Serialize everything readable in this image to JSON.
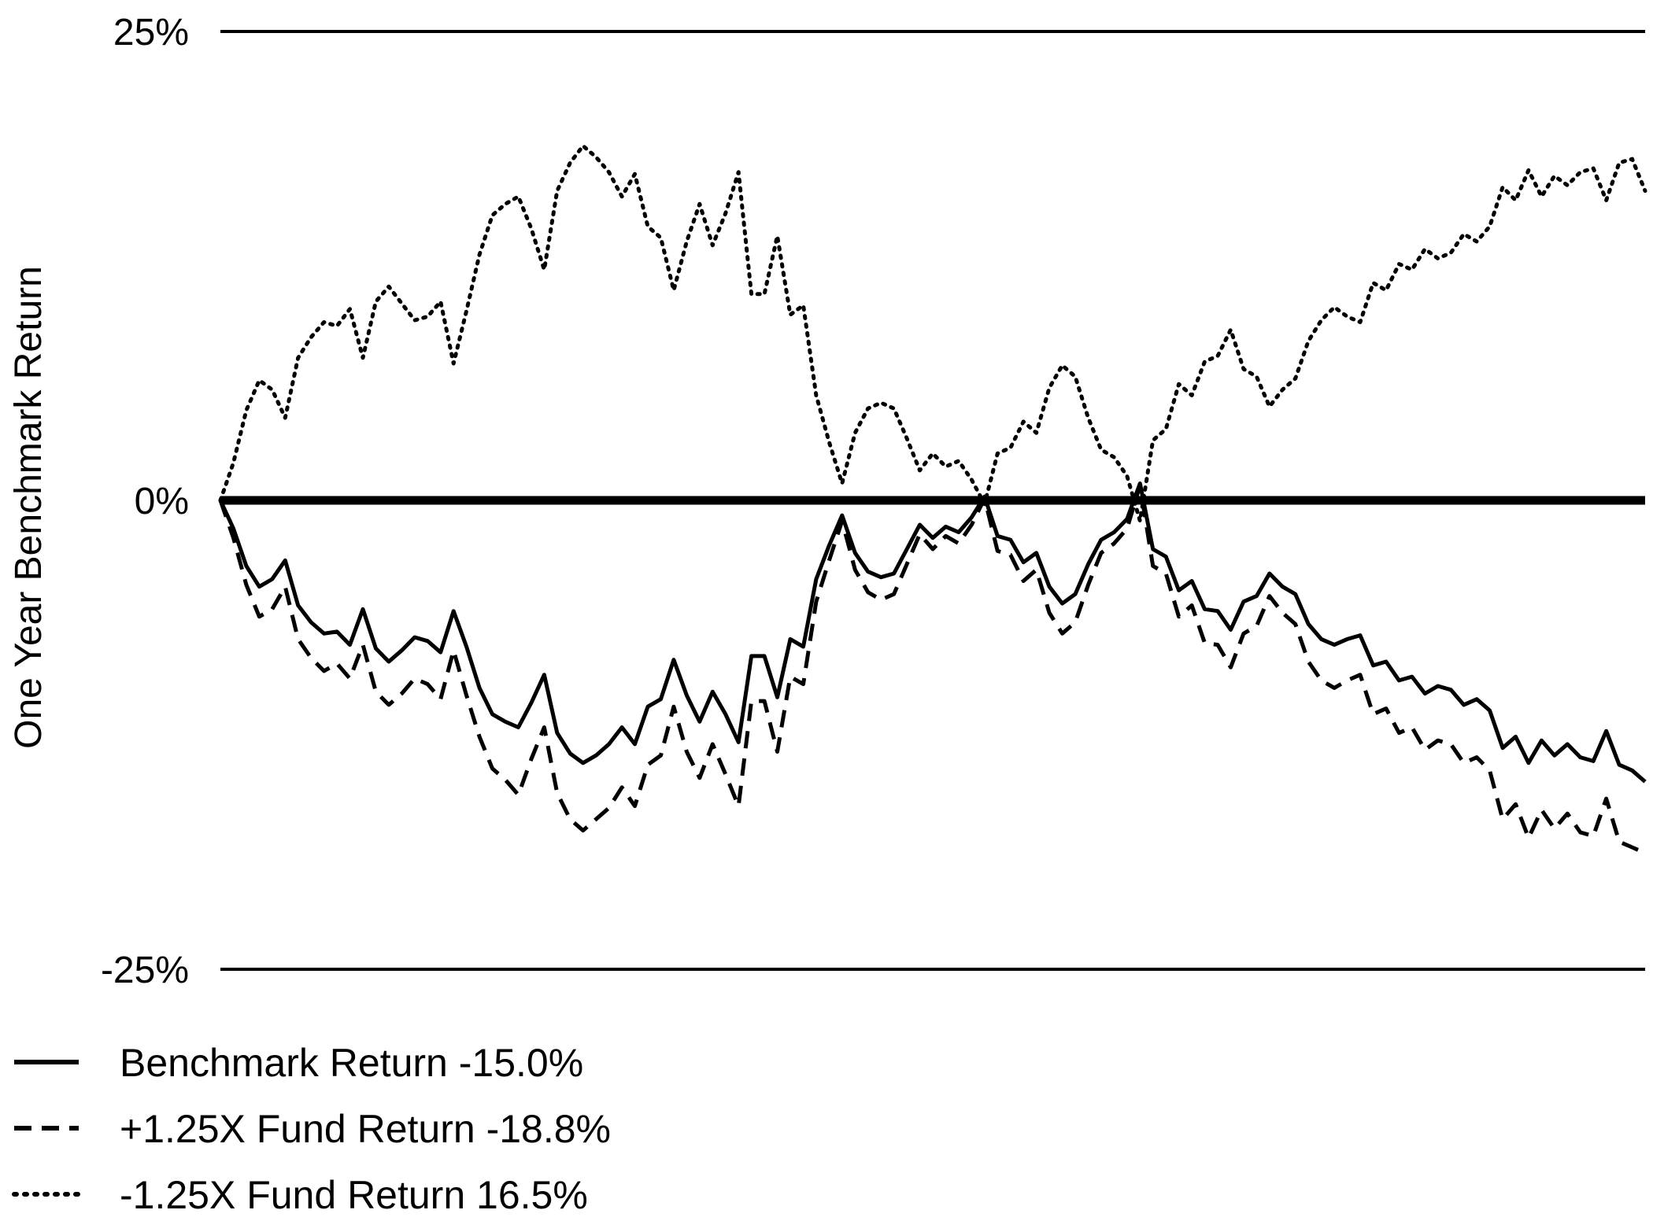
{
  "chart_data": {
    "type": "line",
    "ylabel": "One Year Benchmark Return",
    "xlabel": "",
    "ylim": [
      -25,
      25
    ],
    "y_ticks": [
      {
        "value": 25,
        "label": "25%"
      },
      {
        "value": 0,
        "label": "0%"
      },
      {
        "value": -25,
        "label": "-25%"
      }
    ],
    "grid": "horizontal lines at 25% and -25%, heavy zero line",
    "legend_position": "bottom-left",
    "series": [
      {
        "name": "Benchmark Return -15.0%",
        "style": "solid",
        "color": "#000000",
        "values": [
          0,
          -1.5,
          -3.5,
          -4.6,
          -4.2,
          -3.2,
          -5.6,
          -6.5,
          -7.1,
          -7.0,
          -7.7,
          -5.8,
          -7.9,
          -8.6,
          -8.0,
          -7.3,
          -7.5,
          -8.1,
          -5.9,
          -7.8,
          -10.0,
          -11.4,
          -11.8,
          -12.1,
          -10.8,
          -9.3,
          -12.4,
          -13.5,
          -14.0,
          -13.6,
          -13.0,
          -12.1,
          -13.0,
          -11.0,
          -10.6,
          -8.5,
          -10.4,
          -11.8,
          -10.2,
          -11.4,
          -12.9,
          -8.3,
          -8.3,
          -10.5,
          -7.4,
          -7.8,
          -4.2,
          -2.4,
          -0.8,
          -2.8,
          -3.8,
          -4.1,
          -3.9,
          -2.6,
          -1.3,
          -2.0,
          -1.4,
          -1.7,
          -0.9,
          0.2,
          -1.9,
          -2.1,
          -3.3,
          -2.8,
          -4.6,
          -5.5,
          -5.0,
          -3.4,
          -2.1,
          -1.7,
          -1.0,
          0.9,
          -2.6,
          -3.0,
          -4.8,
          -4.3,
          -5.8,
          -5.9,
          -6.9,
          -5.4,
          -5.1,
          -3.9,
          -4.6,
          -5.0,
          -6.6,
          -7.4,
          -7.7,
          -7.4,
          -7.2,
          -8.8,
          -8.6,
          -9.6,
          -9.4,
          -10.3,
          -9.9,
          -10.1,
          -10.9,
          -10.6,
          -11.2,
          -13.2,
          -12.6,
          -14.0,
          -12.8,
          -13.6,
          -13.0,
          -13.7,
          -13.9,
          -12.3,
          -14.1,
          -14.4,
          -15.0
        ]
      },
      {
        "name": "+1.25X Fund Return -18.8%",
        "style": "dashed",
        "color": "#000000",
        "values": [
          0,
          -2.0,
          -4.5,
          -6.2,
          -5.8,
          -4.6,
          -7.4,
          -8.4,
          -9.1,
          -8.7,
          -9.5,
          -7.7,
          -10.2,
          -10.9,
          -10.3,
          -9.5,
          -9.8,
          -10.6,
          -8.0,
          -10.4,
          -12.6,
          -14.3,
          -14.9,
          -15.7,
          -13.8,
          -12.1,
          -15.6,
          -17.0,
          -17.6,
          -17.0,
          -16.4,
          -15.3,
          -16.3,
          -14.1,
          -13.6,
          -11.0,
          -13.4,
          -14.8,
          -13.0,
          -14.6,
          -16.3,
          -10.7,
          -10.7,
          -13.4,
          -9.4,
          -9.8,
          -5.4,
          -3.2,
          -1.1,
          -3.7,
          -4.9,
          -5.3,
          -5.0,
          -3.4,
          -1.8,
          -2.6,
          -1.9,
          -2.3,
          -1.3,
          0.1,
          -2.7,
          -2.9,
          -4.3,
          -3.7,
          -6.0,
          -7.1,
          -6.5,
          -4.5,
          -2.8,
          -2.3,
          -1.5,
          0.8,
          -3.5,
          -3.9,
          -6.2,
          -5.6,
          -7.6,
          -7.7,
          -8.9,
          -7.1,
          -6.7,
          -5.1,
          -6.0,
          -6.6,
          -8.6,
          -9.6,
          -10.0,
          -9.6,
          -9.3,
          -11.4,
          -11.1,
          -12.4,
          -12.1,
          -13.3,
          -12.8,
          -13.0,
          -14.0,
          -13.7,
          -14.4,
          -17.0,
          -16.2,
          -18.0,
          -16.5,
          -17.5,
          -16.7,
          -17.7,
          -17.9,
          -15.9,
          -18.2,
          -18.5,
          -18.8
        ]
      },
      {
        "name": "-1.25X Fund Return 16.5%",
        "style": "dotted",
        "color": "#000000",
        "values": [
          0,
          2.0,
          4.8,
          6.4,
          5.9,
          4.4,
          7.6,
          8.7,
          9.5,
          9.3,
          10.2,
          7.6,
          10.6,
          11.4,
          10.5,
          9.6,
          9.8,
          10.6,
          7.3,
          10.1,
          13.1,
          15.2,
          15.8,
          16.2,
          14.5,
          12.3,
          16.5,
          18.0,
          18.9,
          18.3,
          17.5,
          16.2,
          17.4,
          14.6,
          14.0,
          11.2,
          13.8,
          15.8,
          13.6,
          15.3,
          17.5,
          11.0,
          11.0,
          14.1,
          9.9,
          10.4,
          5.6,
          3.1,
          0.9,
          3.6,
          4.9,
          5.2,
          4.9,
          3.3,
          1.6,
          2.5,
          1.8,
          2.1,
          1.1,
          -0.2,
          2.5,
          2.8,
          4.2,
          3.6,
          6.0,
          7.2,
          6.6,
          4.4,
          2.7,
          2.3,
          1.3,
          -1.1,
          3.2,
          3.8,
          6.2,
          5.6,
          7.4,
          7.7,
          9.1,
          7.0,
          6.6,
          5.0,
          5.9,
          6.5,
          8.5,
          9.6,
          10.3,
          9.8,
          9.5,
          11.6,
          11.2,
          12.6,
          12.3,
          13.4,
          12.9,
          13.2,
          14.2,
          13.8,
          14.6,
          16.7,
          16.0,
          17.6,
          16.2,
          17.3,
          16.8,
          17.5,
          17.7,
          16.0,
          18.0,
          18.2,
          16.5
        ]
      }
    ]
  }
}
